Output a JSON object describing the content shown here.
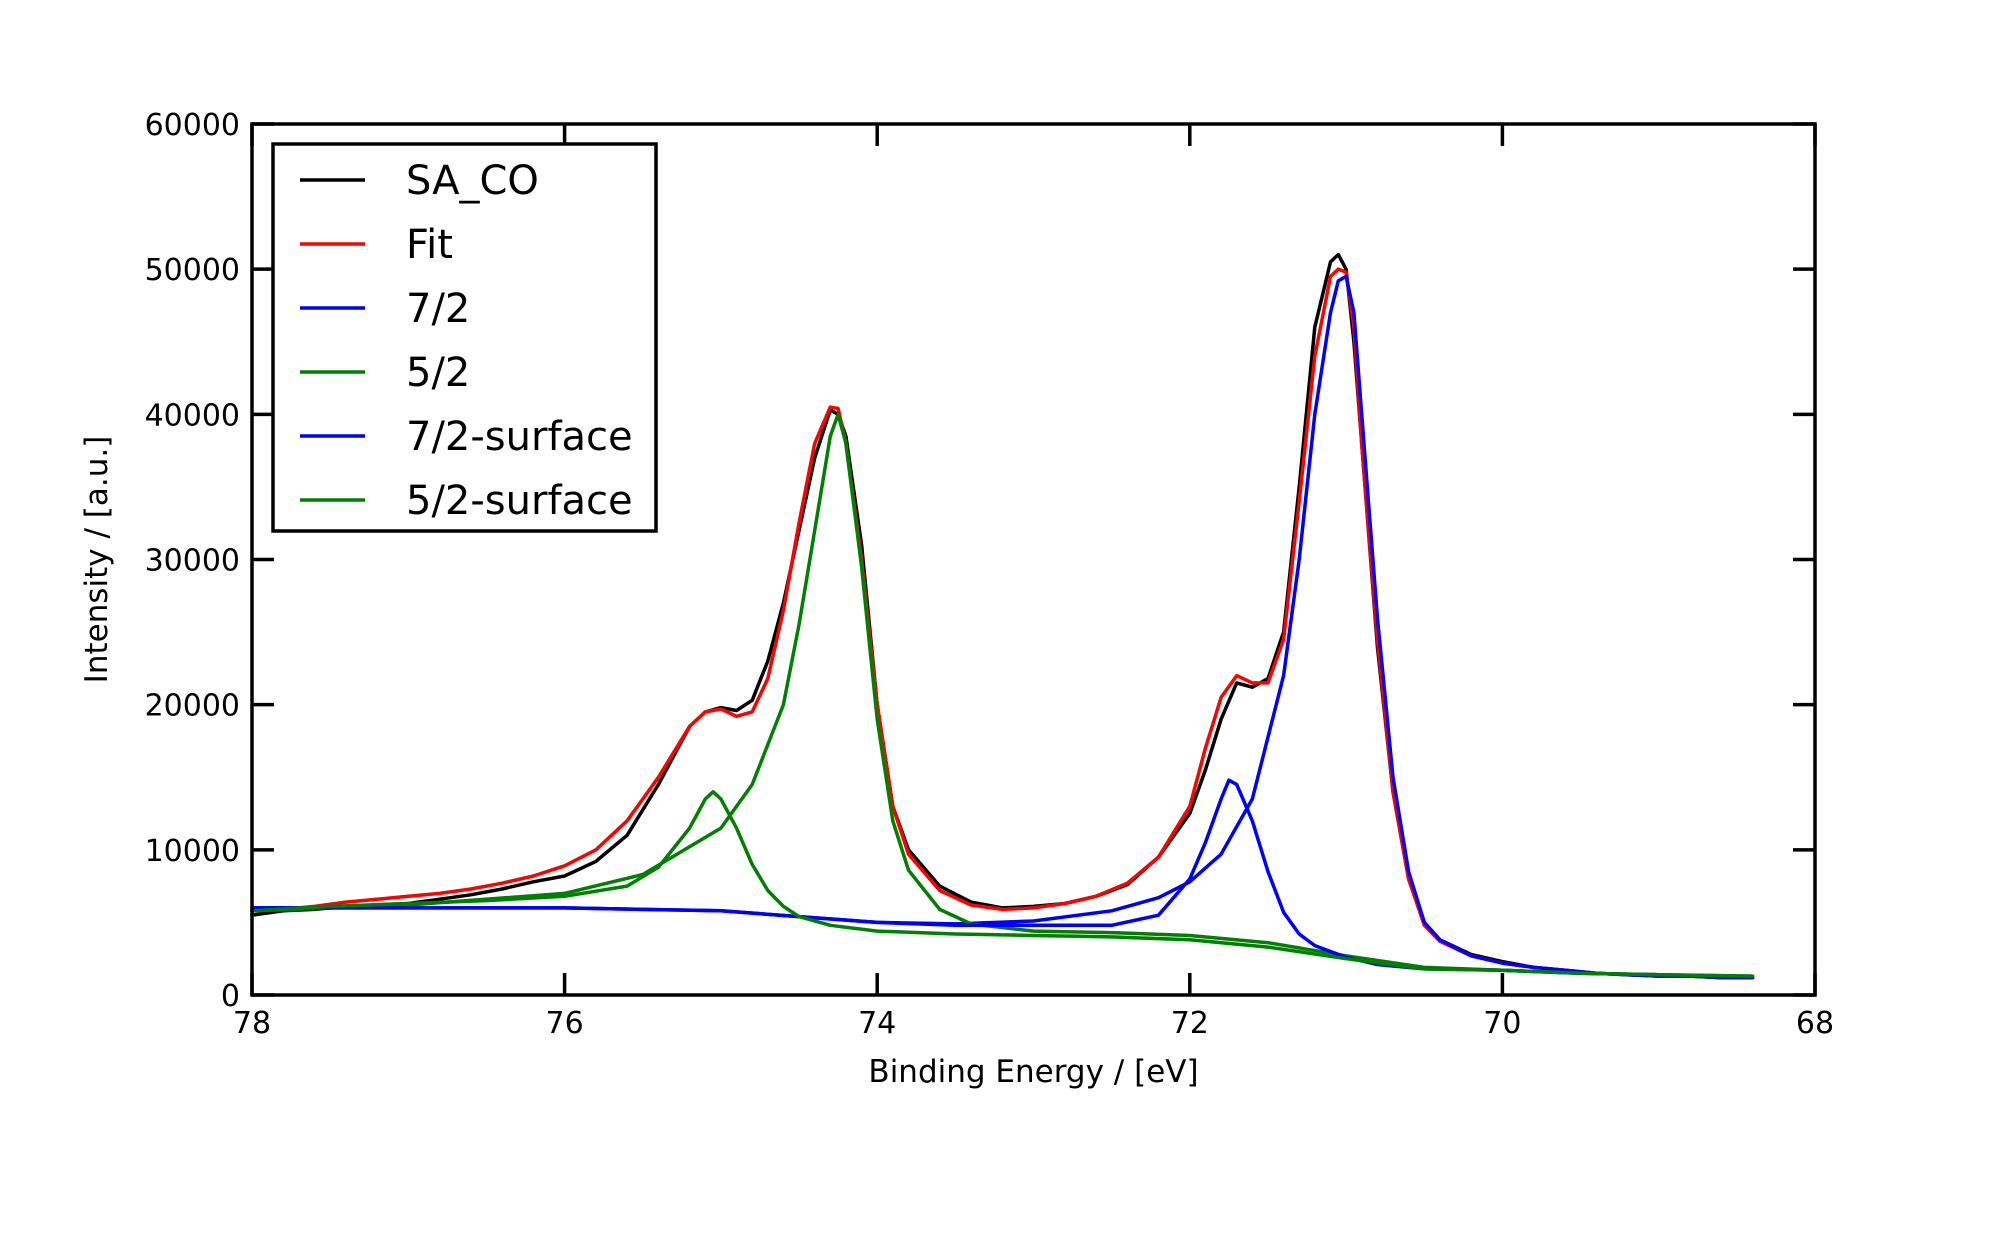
{
  "chart_data": {
    "type": "line",
    "title": "",
    "xlabel": "Binding Energy / [eV]",
    "ylabel": "Intensity / [a.u.]",
    "xlim": [
      78,
      68
    ],
    "ylim": [
      0,
      60000
    ],
    "x_reversed": true,
    "grid": false,
    "legend_position": "top-left",
    "x_ticks": [
      78,
      76,
      74,
      72,
      70,
      68
    ],
    "y_ticks": [
      0,
      10000,
      20000,
      30000,
      40000,
      50000,
      60000
    ],
    "x_tick_labels": [
      "78",
      "76",
      "74",
      "72",
      "70",
      "68"
    ],
    "y_tick_labels": [
      "0",
      "10000",
      "20000",
      "30000",
      "40000",
      "50000",
      "60000"
    ],
    "series": [
      {
        "name": "SA_CO",
        "color": "#000000",
        "x": [
          78.0,
          77.8,
          77.6,
          77.4,
          77.2,
          77.0,
          76.8,
          76.6,
          76.4,
          76.2,
          76.0,
          75.8,
          75.6,
          75.4,
          75.2,
          75.1,
          75.0,
          74.9,
          74.8,
          74.7,
          74.6,
          74.5,
          74.4,
          74.3,
          74.25,
          74.2,
          74.1,
          74.0,
          73.9,
          73.8,
          73.6,
          73.4,
          73.2,
          73.0,
          72.8,
          72.6,
          72.4,
          72.2,
          72.0,
          71.9,
          71.8,
          71.7,
          71.6,
          71.5,
          71.4,
          71.3,
          71.2,
          71.1,
          71.05,
          71.0,
          70.95,
          70.9,
          70.8,
          70.7,
          70.6,
          70.5,
          70.4,
          70.2,
          70.0,
          69.8,
          69.6,
          69.4,
          69.2,
          69.0,
          68.8,
          68.6,
          68.4
        ],
        "y": [
          5500,
          5800,
          5900,
          6100,
          6200,
          6300,
          6600,
          6900,
          7300,
          7800,
          8200,
          9200,
          11000,
          14500,
          18500,
          19500,
          19800,
          19600,
          20300,
          23000,
          27000,
          32000,
          37000,
          40300,
          40000,
          38500,
          31000,
          20000,
          13000,
          10000,
          7500,
          6400,
          6000,
          6100,
          6300,
          6800,
          7600,
          9500,
          12500,
          15500,
          19000,
          21500,
          21200,
          21800,
          25000,
          35000,
          46000,
          50500,
          51000,
          50000,
          45000,
          38000,
          24000,
          14000,
          8000,
          5000,
          3800,
          2800,
          2300,
          1900,
          1700,
          1500,
          1400,
          1300,
          1300,
          1200,
          1200
        ]
      },
      {
        "name": "Fit",
        "color": "#ff0000",
        "x": [
          78.0,
          77.8,
          77.6,
          77.4,
          77.2,
          77.0,
          76.8,
          76.6,
          76.4,
          76.2,
          76.0,
          75.8,
          75.6,
          75.4,
          75.2,
          75.1,
          75.0,
          74.9,
          74.8,
          74.7,
          74.6,
          74.5,
          74.4,
          74.3,
          74.25,
          74.2,
          74.1,
          74.0,
          73.9,
          73.8,
          73.6,
          73.4,
          73.2,
          73.0,
          72.8,
          72.6,
          72.4,
          72.2,
          72.0,
          71.9,
          71.8,
          71.7,
          71.6,
          71.5,
          71.4,
          71.3,
          71.2,
          71.1,
          71.05,
          71.0,
          70.95,
          70.9,
          70.8,
          70.7,
          70.6,
          70.5,
          70.4,
          70.2,
          70.0,
          69.8,
          69.6,
          69.4,
          69.2,
          69.0,
          68.8,
          68.6,
          68.4
        ],
        "y": [
          5800,
          5900,
          6100,
          6400,
          6600,
          6800,
          7000,
          7300,
          7700,
          8200,
          8900,
          10000,
          12000,
          15000,
          18500,
          19500,
          19700,
          19200,
          19500,
          21800,
          26500,
          32500,
          38000,
          40500,
          40400,
          38000,
          30000,
          20000,
          13000,
          9700,
          7200,
          6200,
          5900,
          6000,
          6300,
          6800,
          7700,
          9500,
          13000,
          17000,
          20500,
          22000,
          21500,
          21500,
          24500,
          34000,
          44000,
          49500,
          50000,
          49800,
          46000,
          38000,
          24500,
          14000,
          8000,
          4800,
          3700,
          2700,
          2200,
          1900,
          1700,
          1500,
          1400,
          1300,
          1300,
          1200,
          1200
        ]
      },
      {
        "name": "7/2",
        "color": "#0000ff",
        "x": [
          78.0,
          77.0,
          76.0,
          75.0,
          74.5,
          74.0,
          73.5,
          73.0,
          72.5,
          72.2,
          72.0,
          71.8,
          71.6,
          71.4,
          71.3,
          71.2,
          71.1,
          71.05,
          71.0,
          70.95,
          70.9,
          70.8,
          70.7,
          70.6,
          70.5,
          70.4,
          70.2,
          70.0,
          69.8,
          69.6,
          69.4,
          69.2,
          69.0,
          68.8,
          68.6,
          68.4
        ],
        "y": [
          6000,
          6000,
          6000,
          5800,
          5400,
          5000,
          4900,
          5100,
          5800,
          6700,
          7800,
          9700,
          13500,
          22000,
          30000,
          40000,
          47000,
          49200,
          49500,
          47000,
          40000,
          26000,
          15000,
          8500,
          5000,
          3800,
          2700,
          2200,
          1900,
          1700,
          1500,
          1400,
          1300,
          1300,
          1200,
          1200
        ]
      },
      {
        "name": "5/2",
        "color": "#008000",
        "x": [
          78.0,
          77.0,
          76.0,
          75.5,
          75.0,
          74.8,
          74.6,
          74.5,
          74.4,
          74.3,
          74.25,
          74.2,
          74.1,
          74.0,
          73.9,
          73.8,
          73.6,
          73.4,
          73.0,
          72.5,
          72.0,
          71.5,
          71.0,
          70.5,
          70.0,
          69.5,
          69.0,
          68.4
        ],
        "y": [
          5800,
          6200,
          7000,
          8300,
          11500,
          14500,
          20000,
          25500,
          32000,
          38500,
          40000,
          38000,
          29500,
          19000,
          12000,
          8600,
          5900,
          4900,
          4400,
          4300,
          4100,
          3600,
          2700,
          1900,
          1700,
          1500,
          1400,
          1300
        ]
      },
      {
        "name": "7/2-surface",
        "color": "#0000ff",
        "x": [
          78.0,
          77.0,
          76.0,
          75.0,
          74.5,
          74.0,
          73.5,
          73.0,
          72.5,
          72.2,
          72.0,
          71.9,
          71.8,
          71.75,
          71.7,
          71.6,
          71.5,
          71.4,
          71.3,
          71.2,
          71.0,
          70.8,
          70.5,
          70.0,
          69.5,
          69.0,
          68.4
        ],
        "y": [
          6000,
          6000,
          6000,
          5800,
          5400,
          5000,
          4800,
          4800,
          4800,
          5500,
          8000,
          10500,
          13500,
          14800,
          14500,
          12000,
          8500,
          5700,
          4200,
          3400,
          2600,
          2100,
          1800,
          1700,
          1500,
          1400,
          1200
        ]
      },
      {
        "name": "5/2-surface",
        "color": "#008000",
        "x": [
          78.0,
          77.5,
          77.0,
          76.5,
          76.0,
          75.6,
          75.4,
          75.2,
          75.1,
          75.05,
          75.0,
          74.9,
          74.8,
          74.7,
          74.6,
          74.5,
          74.3,
          74.0,
          73.5,
          73.0,
          72.5,
          72.0,
          71.5,
          71.0,
          70.5,
          70.0,
          69.5,
          69.0,
          68.4
        ],
        "y": [
          5800,
          6100,
          6300,
          6500,
          6800,
          7500,
          8800,
          11500,
          13500,
          14000,
          13500,
          11500,
          9000,
          7200,
          6100,
          5400,
          4800,
          4400,
          4200,
          4100,
          4000,
          3800,
          3300,
          2500,
          1800,
          1700,
          1500,
          1400,
          1300
        ]
      }
    ]
  }
}
